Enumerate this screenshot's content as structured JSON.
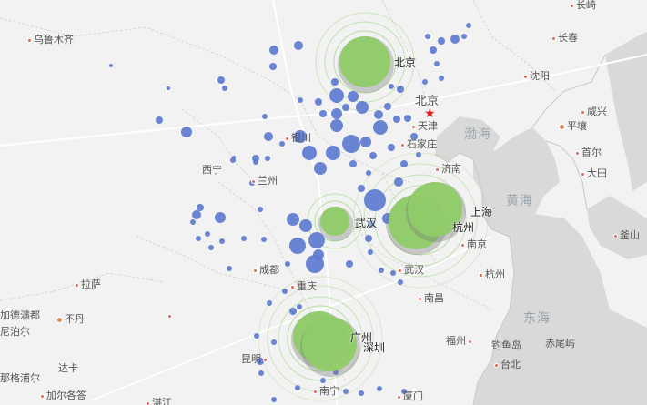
{
  "map": {
    "colors": {
      "land": "#f2f2f2",
      "sea": "#d9d9d9",
      "border": "#cfcfcf",
      "road": "#ffffff",
      "bubble_small": "#5b78d0",
      "bubble_large": "#8fcc68",
      "ring": "#a6d88a"
    },
    "sea_labels": [
      "渤海",
      "黄海",
      "东海"
    ],
    "capital": {
      "name": "北京",
      "marker": "★"
    },
    "city_labels": [
      "乌鲁木齐",
      "西宁",
      "兰州",
      "银川",
      "石家庄",
      "天津",
      "济南",
      "沈阳",
      "长春",
      "平壤",
      "咸兴",
      "首尔",
      "大田",
      "釜山",
      "长崎",
      "成都",
      "重庆",
      "武汉",
      "南京",
      "杭州",
      "南昌",
      "福州",
      "厦门",
      "拉萨",
      "昆明",
      "南宁",
      "湛江",
      "钓鱼岛",
      "赤尾屿",
      "台北",
      "加德满都",
      "尼泊尔",
      "达卡",
      "加尔各答",
      "不丹",
      "那格浦尔"
    ],
    "highlight_labels": [
      "北京",
      "武汉",
      "上海",
      "杭州",
      "广州",
      "深圳"
    ]
  }
}
